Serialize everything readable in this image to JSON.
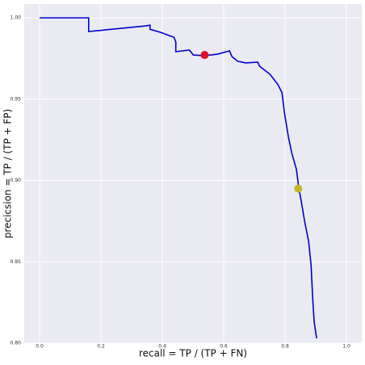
{
  "chart_data": {
    "type": "line",
    "x_label": "recall = TP / (TP + FN)",
    "y_label": "precicsion = TP / (TP + FP)",
    "xlim": [
      -0.05,
      1.05
    ],
    "ylim": [
      0.8,
      1.0085
    ],
    "xticks": [
      {
        "value": 0,
        "label": "0.0"
      },
      0.2,
      0.4,
      0.6,
      0.8,
      {
        "value": 1,
        "label": "1.0"
      }
    ],
    "yticks": [
      {
        "value": 0.8,
        "label": "0.80"
      },
      0.85,
      {
        "value": 0.9,
        "label": "0.90"
      },
      0.95,
      {
        "value": 1,
        "label": "1.00"
      }
    ],
    "grid": true,
    "series": [
      {
        "color": "#0000cc",
        "x": [
          0,
          0.16,
          0.16,
          0.344,
          0.36,
          0.36,
          0.396,
          0.423,
          0.438,
          0.444,
          0.444,
          0.488,
          0.501,
          0.538,
          0.58,
          0.619,
          0.627,
          0.646,
          0.672,
          0.711,
          0.717,
          0.751,
          0.777,
          0.79,
          0.798,
          0.811,
          0.822,
          0.837,
          0.845,
          0.853,
          0.864,
          0.877,
          0.885,
          0.89,
          0.895,
          0.903
        ],
        "values": [
          1,
          1,
          0.9916,
          0.995,
          0.9955,
          0.993,
          0.991,
          0.9891,
          0.9881,
          0.9851,
          0.9792,
          0.9802,
          0.9772,
          0.9767,
          0.9777,
          0.9797,
          0.9762,
          0.9733,
          0.9723,
          0.9728,
          0.9703,
          0.9653,
          0.9589,
          0.954,
          0.9416,
          0.9267,
          0.9168,
          0.9069,
          0.895,
          0.8871,
          0.8747,
          0.8624,
          0.8475,
          0.8277,
          0.8129,
          0.803
        ]
      }
    ],
    "markers": [
      {
        "x": 0.538,
        "y": 0.9772,
        "color": "#e0112b"
      },
      {
        "x": 0.843,
        "y": 0.895,
        "color": "#c2b52a"
      }
    ]
  }
}
